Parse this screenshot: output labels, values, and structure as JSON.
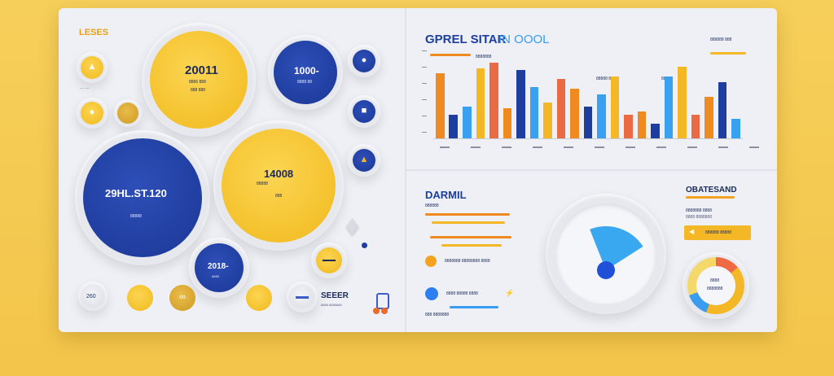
{
  "left_panel": {
    "title": "LESES",
    "circle_top": {
      "value": "20011",
      "caption": "8886 888"
    },
    "circle_top_right": {
      "value": "1000-",
      "caption": "8888 88"
    },
    "circle_big_blue": {
      "value": "29HL.ST.120",
      "caption": "88888"
    },
    "circle_big_yellow": {
      "value": "14008",
      "caption": "88888"
    },
    "circle_small_blue": {
      "value": "2018-",
      "caption": "8888"
    },
    "footer_label": "SEEER",
    "footer_caption": "8888 8888888",
    "small_grey_label": "260"
  },
  "top_right": {
    "title": "GPREL SITAR",
    "title_suffix": "IN OOOL",
    "corner_label": "888888 888",
    "legend_1": "8888888",
    "legend_2": "88888 88",
    "legend_3": "88"
  },
  "chart_data": {
    "type": "bar",
    "title": "GPREL SITAR",
    "categories": [
      "1",
      "2",
      "3",
      "4",
      "5",
      "6",
      "7",
      "8",
      "9",
      "10",
      "11",
      "12",
      "13",
      "14",
      "15",
      "16",
      "17",
      "18",
      "19",
      "20",
      "21",
      "22",
      "23"
    ],
    "series": [
      {
        "values": [
          0.82,
          0.3,
          0.4,
          0.88,
          0.95,
          0.38,
          0.86,
          0.64,
          0.45,
          0.75,
          0.62,
          0.4,
          0.55,
          0.78,
          0.3,
          0.34,
          0.18,
          0.78,
          0.9,
          0.3,
          0.52,
          0.7,
          0.25
        ]
      }
    ],
    "colors": [
      "#ee8a20",
      "#1d3e9f",
      "#3aa0f0",
      "#f4b826",
      "#ea6a44"
    ],
    "ylim": [
      0,
      1
    ]
  },
  "bottom_mid": {
    "title": "DARMIL",
    "subtitle": "888888",
    "row_1": "8888888 88888888 8888",
    "row_2": "8888 88888 8888",
    "row_3": "888 8888888"
  },
  "gauge": {
    "value": 0.78
  },
  "bottom_right": {
    "title": "OBATESAND",
    "subtitle": "8888888 8888",
    "caption": "8888 8888888",
    "button_label": "888888 88888"
  },
  "donut": {
    "label": "8888",
    "caption": "8888888"
  }
}
